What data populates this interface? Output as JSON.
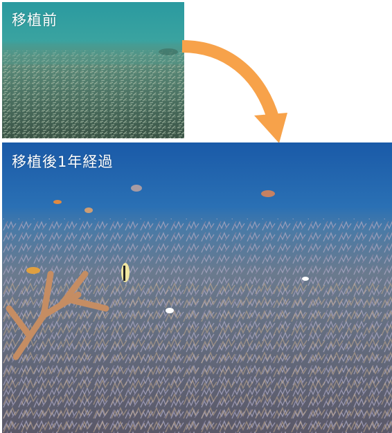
{
  "figure": {
    "before": {
      "label": "移植前",
      "description_icon": "coral-rubble-seafloor"
    },
    "after": {
      "label": "移植後1年経過",
      "description_icon": "coral-reef-with-fish"
    },
    "arrow": {
      "color": "#f7a24a",
      "icon": "curved-arrow-down-icon"
    }
  },
  "colors": {
    "water_top_before": "#2a8f9a",
    "water_top_after": "#1f5fa8",
    "arrow": "#f7a24a",
    "caption_text": "#ffffff"
  }
}
